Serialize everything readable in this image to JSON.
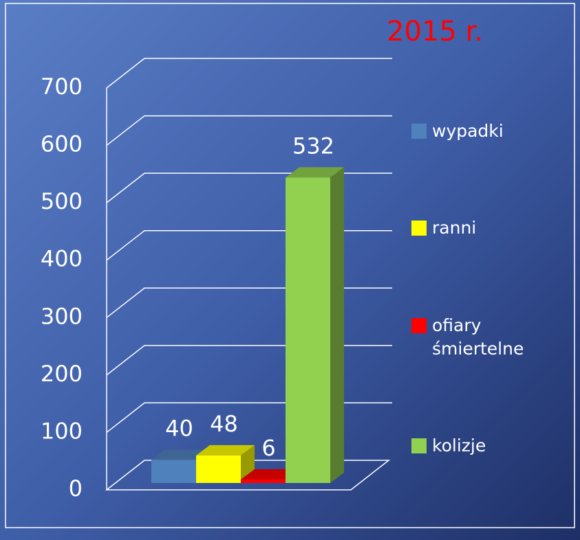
{
  "chart_data": {
    "type": "bar3d",
    "title": "2015 r.",
    "series": [
      {
        "name": "wypadki",
        "color": "#4f81bd",
        "values": [
          40
        ]
      },
      {
        "name": "ranni",
        "color": "#ffff00",
        "values": [
          48
        ]
      },
      {
        "name": "ofiary śmiertelne",
        "color": "#ff0000",
        "values": [
          6
        ]
      },
      {
        "name": "kolizje",
        "color": "#92d050",
        "values": [
          532
        ]
      }
    ],
    "ylim": [
      0,
      700
    ],
    "yticks": [
      0,
      100,
      200,
      300,
      400,
      500,
      600,
      700
    ],
    "grid": true,
    "legend": "right"
  }
}
